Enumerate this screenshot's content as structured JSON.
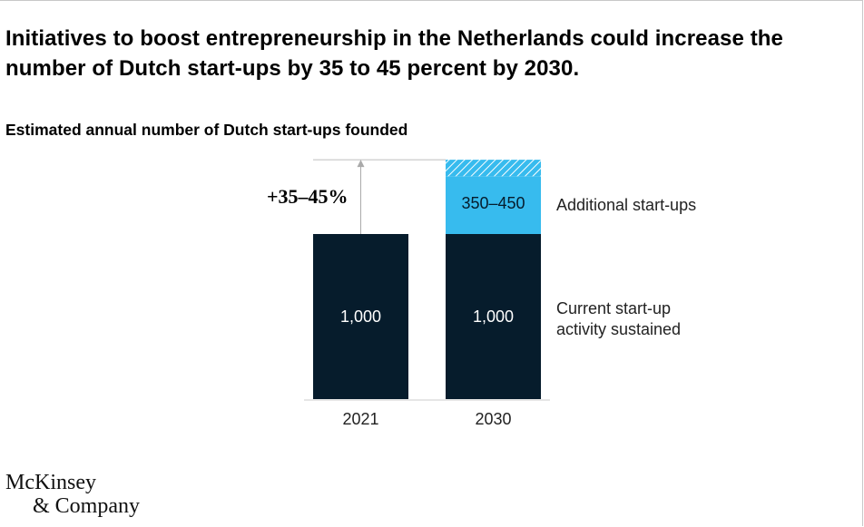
{
  "title": "Initiatives to boost entrepreneurship in the Netherlands could increase the number of Dutch start-ups by 35 to 45 percent by 2030.",
  "logo": {
    "line1": "McKinsey",
    "line2": "& Company"
  },
  "colors": {
    "base": "#061C2C",
    "additional": "#37BBEE",
    "hatch": "#9ADCF6",
    "arrow": "#AAAAAA",
    "axis": "#CCCCCC"
  },
  "chart_data": {
    "type": "bar",
    "stacked": true,
    "title": "Estimated annual number of Dutch start-ups founded",
    "categories": [
      "2021",
      "2030"
    ],
    "series": [
      {
        "name": "Current start-up activity sustained",
        "legend_lines": [
          "Current start-up",
          "activity sustained"
        ],
        "values": [
          1000,
          1000
        ],
        "labels": [
          "1,000",
          "1,000"
        ]
      },
      {
        "name": "Additional start-ups",
        "legend_lines": [
          "Additional start-ups"
        ],
        "values": [
          0,
          350
        ],
        "range_top": [
          0,
          450
        ],
        "labels": [
          "",
          "350–450"
        ]
      }
    ],
    "annotation": "+35–45%",
    "ylim": [
      0,
      1400
    ]
  }
}
